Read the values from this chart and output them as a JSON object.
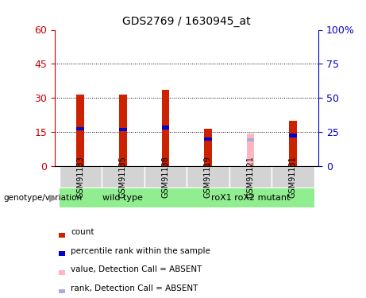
{
  "title": "GDS2769 / 1630945_at",
  "samples": [
    "GSM91133",
    "GSM91135",
    "GSM91138",
    "GSM91119",
    "GSM91121",
    "GSM91131"
  ],
  "red_values": [
    31.5,
    31.5,
    33.5,
    16.5,
    0,
    20.0
  ],
  "blue_values": [
    16.5,
    16.0,
    17.0,
    12.0,
    0,
    13.5
  ],
  "pink_values": [
    0,
    0,
    0,
    0,
    14.5,
    0
  ],
  "lightblue_values": [
    0,
    0,
    0,
    0,
    11.5,
    0
  ],
  "absent_flags": [
    false,
    false,
    false,
    false,
    true,
    false
  ],
  "ylim": [
    0,
    60
  ],
  "yticks_left": [
    0,
    15,
    30,
    45,
    60
  ],
  "yticks_right": [
    0,
    25,
    50,
    75,
    100
  ],
  "grid_values": [
    15,
    30,
    45
  ],
  "left_axis_color": "#cc0000",
  "right_axis_color": "#0000cc",
  "bar_color_red": "#cc2200",
  "bar_color_blue": "#0000cc",
  "bar_color_pink": "#ffb6c1",
  "bar_color_lightblue": "#aaaadd",
  "genotype_label": "genotype/variation",
  "wild_type_label": "wild type",
  "mutant_label": "roX1 roX2 mutant",
  "wild_type_color": "#90ee90",
  "mutant_color": "#90ee90",
  "sample_box_color": "#d3d3d3",
  "legend_items": [
    {
      "color": "#cc2200",
      "label": "count"
    },
    {
      "color": "#0000cc",
      "label": "percentile rank within the sample"
    },
    {
      "color": "#ffb6c1",
      "label": "value, Detection Call = ABSENT"
    },
    {
      "color": "#aaaadd",
      "label": "rank, Detection Call = ABSENT"
    }
  ],
  "bar_width": 0.18,
  "blue_bar_height": 1.5,
  "lightblue_bar_height": 1.5,
  "figsize": [
    4.61,
    3.75
  ],
  "dpi": 100
}
